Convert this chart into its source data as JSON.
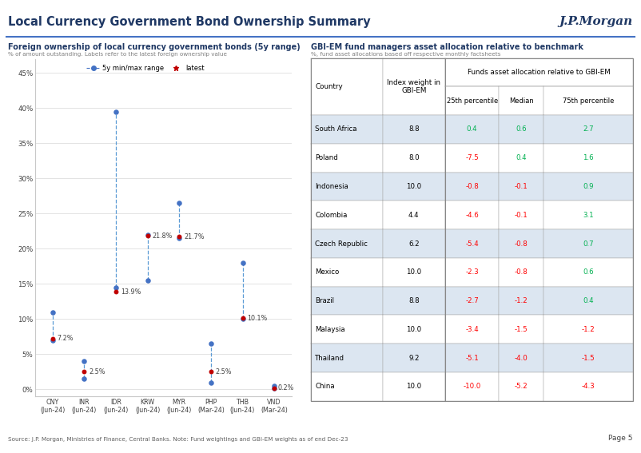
{
  "title": "Local Currency Government Bond Ownership Summary",
  "left_chart_title": "Foreign ownership of local currency government bonds (5y range)",
  "left_chart_subtitle": "% of amount outstanding. Labels refer to the latest foreign ownership value",
  "right_chart_title": "GBI-EM fund managers asset allocation relative to benchmark",
  "right_chart_subtitle": "%, fund asset allocations based off respective monthly factsheets",
  "background_color": "#ffffff",
  "categories": [
    "CNY\n(Jun-24)",
    "INR\n(Jun-24)",
    "IDR\n(Jun-24)",
    "KRW\n(Jun-24)",
    "MYR\n(Jun-24)",
    "PHP\n(Mar-24)",
    "THB\n(Jun-24)",
    "VND\n(Mar-24)"
  ],
  "range_min": [
    7.0,
    1.5,
    14.5,
    15.5,
    21.5,
    1.0,
    10.0,
    0.1
  ],
  "range_max": [
    11.0,
    4.0,
    39.5,
    22.0,
    26.5,
    6.5,
    18.0,
    0.5
  ],
  "latest": [
    7.2,
    2.5,
    13.9,
    21.8,
    21.7,
    2.5,
    10.1,
    0.2
  ],
  "latest_labels": [
    "7.2%",
    "2.5%",
    "13.9%",
    "21.8%",
    "21.7%",
    "2.5%",
    "10.1%",
    "0.2%"
  ],
  "table_countries": [
    "South Africa",
    "Poland",
    "Indonesia",
    "Colombia",
    "Czech Republic",
    "Mexico",
    "Brazil",
    "Malaysia",
    "Thailand",
    "China"
  ],
  "table_index_weight": [
    "8.8",
    "8.0",
    "10.0",
    "4.4",
    "6.2",
    "10.0",
    "8.8",
    "10.0",
    "9.2",
    "10.0"
  ],
  "table_p25": [
    "0.4",
    "-7.5",
    "-0.8",
    "-4.6",
    "-5.4",
    "-2.3",
    "-2.7",
    "-3.4",
    "-5.1",
    "-10.0"
  ],
  "table_median": [
    "0.6",
    "0.4",
    "-0.1",
    "-0.1",
    "-0.8",
    "-0.8",
    "-1.2",
    "-1.5",
    "-4.0",
    "-5.2"
  ],
  "table_p75": [
    "2.7",
    "1.6",
    "0.9",
    "3.1",
    "0.7",
    "0.6",
    "0.4",
    "-1.2",
    "-1.5",
    "-4.3"
  ],
  "table_p25_vals": [
    0.4,
    -7.5,
    -0.8,
    -4.6,
    -5.4,
    -2.3,
    -2.7,
    -3.4,
    -5.1,
    -10.0
  ],
  "table_median_vals": [
    0.6,
    0.4,
    -0.1,
    -0.1,
    -0.8,
    -0.8,
    -1.2,
    -1.5,
    -4.0,
    -5.2
  ],
  "table_p75_vals": [
    2.7,
    1.6,
    0.9,
    3.1,
    0.7,
    0.6,
    0.4,
    -1.2,
    -1.5,
    -4.3
  ],
  "dot_blue": "#4472C4",
  "dot_red": "#C00000",
  "line_blue_dashed": "#5B9BD5",
  "table_alt_row_bg": "#DCE6F1",
  "green_color": "#00B050",
  "red_color": "#FF0000",
  "source_text": "Source: J.P. Morgan, Ministries of Finance, Central Banks. Note: Fund weightings and GBI-EM weights as of end Dec-23",
  "page_text": "Page 5"
}
